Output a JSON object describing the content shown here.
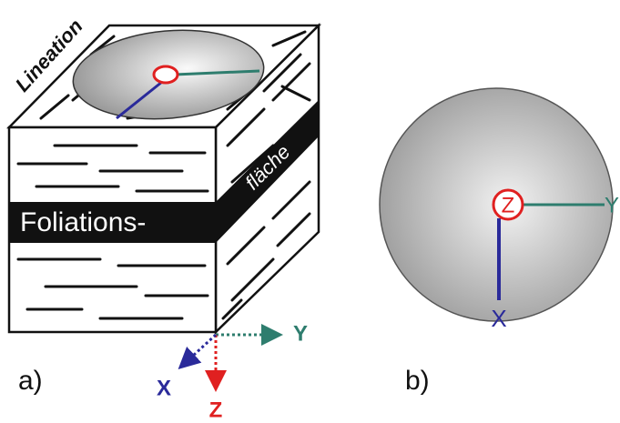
{
  "panel_a": {
    "label": "a)",
    "lineation": "Lineation",
    "foliation": "Foliations-",
    "flaeche": "fläche",
    "axes": {
      "x": "X",
      "y": "Y",
      "z": "Z"
    }
  },
  "panel_b": {
    "label": "b)",
    "axes": {
      "x": "X",
      "y": "Y",
      "z": "Z"
    }
  }
}
